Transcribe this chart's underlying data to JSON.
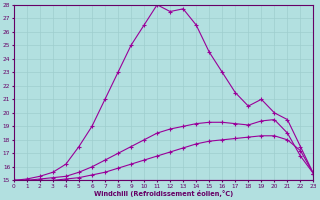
{
  "xlabel": "Windchill (Refroidissement éolien,°C)",
  "bg_color": "#b2e0e0",
  "grid_color": "#9ecece",
  "line_color": "#990099",
  "xlim": [
    0,
    23
  ],
  "ylim": [
    15,
    28
  ],
  "xticks": [
    0,
    1,
    2,
    3,
    4,
    5,
    6,
    7,
    8,
    9,
    10,
    11,
    12,
    13,
    14,
    15,
    16,
    17,
    18,
    19,
    20,
    21,
    22,
    23
  ],
  "yticks": [
    15,
    16,
    17,
    18,
    19,
    20,
    21,
    22,
    23,
    24,
    25,
    26,
    27,
    28
  ],
  "line1_y": [
    15.0,
    15.0,
    15.0,
    15.0,
    15.0,
    15.0,
    15.0,
    15.0,
    15.0,
    15.0,
    15.0,
    15.0,
    15.0,
    15.0,
    15.0,
    15.0,
    15.0,
    15.0,
    15.0,
    15.0,
    15.0,
    15.0,
    15.0,
    15.0
  ],
  "line2_y": [
    15.0,
    15.0,
    15.0,
    15.0,
    15.1,
    15.2,
    15.4,
    15.6,
    15.9,
    16.2,
    16.5,
    16.8,
    17.1,
    17.4,
    17.7,
    17.9,
    18.0,
    18.1,
    18.2,
    18.3,
    18.3,
    18.0,
    17.2,
    15.5
  ],
  "line3_y": [
    15.0,
    15.0,
    15.1,
    15.2,
    15.3,
    15.6,
    16.0,
    16.5,
    17.0,
    17.5,
    18.0,
    18.5,
    18.8,
    19.0,
    19.2,
    19.3,
    19.3,
    19.2,
    19.1,
    19.4,
    19.5,
    18.5,
    16.8,
    15.5
  ],
  "line4_y": [
    15.0,
    15.1,
    15.3,
    15.6,
    16.2,
    17.5,
    19.0,
    21.0,
    23.0,
    25.0,
    26.5,
    28.0,
    27.5,
    27.7,
    26.5,
    24.5,
    23.0,
    21.5,
    20.5,
    21.0,
    20.0,
    19.5,
    17.5,
    15.5
  ]
}
